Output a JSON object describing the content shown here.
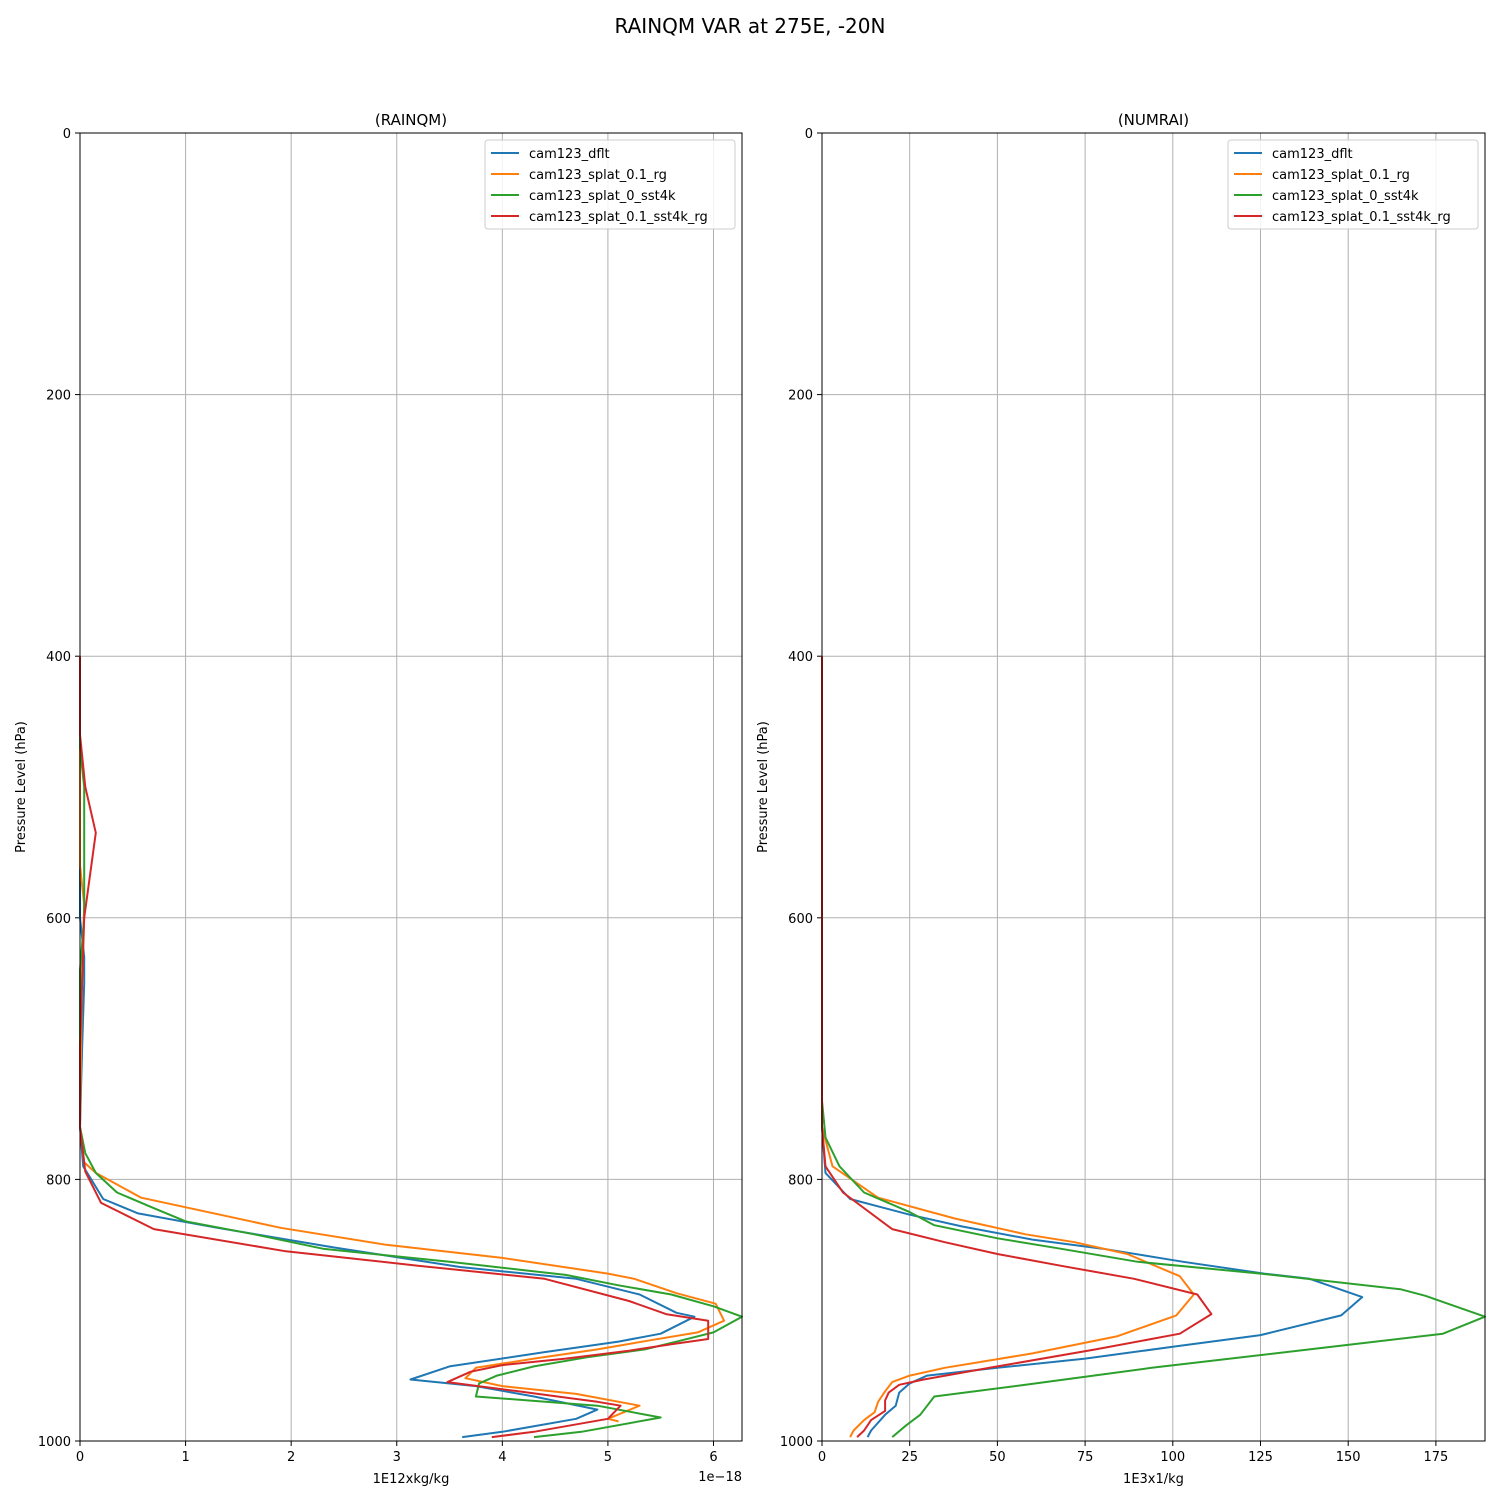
{
  "figure": {
    "title": "RAINQM VAR at 275E, -20N"
  },
  "colors": {
    "cam123_dflt": "#1f77b4",
    "cam123_splat_0.1_rg": "#ff7f0e",
    "cam123_splat_0_sst4k": "#2ca02c",
    "cam123_splat_0.1_sst4k_rg": "#d62728",
    "grid": "#b0b0b0"
  },
  "chart_data": [
    {
      "type": "line",
      "title": "(RAINQM)",
      "xlabel": "1E12xkg/kg",
      "ylabel": "Pressure Level (hPa)",
      "x_offset_label": "1e−18",
      "xlim": [
        0,
        6.27
      ],
      "ylim": [
        1000,
        0
      ],
      "y_inverted": true,
      "xticks": [
        "0",
        "1",
        "2",
        "3",
        "4",
        "5",
        "6"
      ],
      "yticks": [
        "0",
        "200",
        "400",
        "600",
        "800",
        "1000"
      ],
      "grid": true,
      "legend_position": "top-right",
      "series": [
        {
          "name": "cam123_dflt",
          "color": "#1f77b4",
          "points": [
            [
              0,
              400
            ],
            [
              0,
              600
            ],
            [
              0.04,
              630
            ],
            [
              0.04,
              650
            ],
            [
              0.02,
              700
            ],
            [
              0,
              760
            ],
            [
              0.03,
              790
            ],
            [
              0.22,
              815
            ],
            [
              0.55,
              826
            ],
            [
              1.3,
              837
            ],
            [
              2.4,
              852
            ],
            [
              3.6,
              867
            ],
            [
              4.7,
              876
            ],
            [
              5.3,
              888
            ],
            [
              5.65,
              902
            ],
            [
              5.82,
              905
            ],
            [
              5.5,
              918
            ],
            [
              5.1,
              924
            ],
            [
              4.4,
              932
            ],
            [
              3.5,
              943
            ],
            [
              3.13,
              953
            ],
            [
              3.75,
              958
            ],
            [
              4.3,
              966
            ],
            [
              4.9,
              976
            ],
            [
              4.7,
              983
            ],
            [
              4.0,
              993
            ],
            [
              3.62,
              997
            ]
          ]
        },
        {
          "name": "cam123_splat_0.1_rg",
          "color": "#ff7f0e",
          "points": [
            [
              0,
              400
            ],
            [
              0,
              560
            ],
            [
              0.04,
              590
            ],
            [
              0.02,
              640
            ],
            [
              0,
              760
            ],
            [
              0.04,
              787
            ],
            [
              0.15,
              795
            ],
            [
              0.58,
              814
            ],
            [
              1.9,
              837
            ],
            [
              2.9,
              850
            ],
            [
              4.0,
              860
            ],
            [
              5.0,
              872
            ],
            [
              5.25,
              876
            ],
            [
              5.65,
              887
            ],
            [
              6.02,
              895
            ],
            [
              6.1,
              908
            ],
            [
              5.85,
              917
            ],
            [
              5.4,
              923
            ],
            [
              4.9,
              930
            ],
            [
              4.3,
              937
            ],
            [
              3.75,
              944
            ],
            [
              3.65,
              952
            ],
            [
              4.0,
              958
            ],
            [
              4.7,
              964
            ],
            [
              5.3,
              973
            ],
            [
              5.0,
              983
            ],
            [
              5.1,
              985
            ]
          ]
        },
        {
          "name": "cam123_splat_0_sst4k",
          "color": "#2ca02c",
          "points": [
            [
              0,
              400
            ],
            [
              0,
              470
            ],
            [
              0.04,
              500
            ],
            [
              0.04,
              600
            ],
            [
              0,
              640
            ],
            [
              0,
              760
            ],
            [
              0.05,
              780
            ],
            [
              0.15,
              795
            ],
            [
              0.35,
              810
            ],
            [
              0.7,
              822
            ],
            [
              1.0,
              832
            ],
            [
              1.65,
              842
            ],
            [
              2.3,
              853
            ],
            [
              3.5,
              863
            ],
            [
              4.6,
              873
            ],
            [
              5.1,
              881
            ],
            [
              5.6,
              888
            ],
            [
              6.0,
              897
            ],
            [
              6.27,
              905
            ],
            [
              6.0,
              917
            ],
            [
              5.7,
              923
            ],
            [
              5.35,
              930
            ],
            [
              4.8,
              936
            ],
            [
              4.3,
              943
            ],
            [
              3.95,
              950
            ],
            [
              3.78,
              956
            ],
            [
              3.75,
              966
            ],
            [
              4.9,
              973
            ],
            [
              5.5,
              982
            ],
            [
              4.75,
              993
            ],
            [
              4.3,
              997
            ]
          ]
        },
        {
          "name": "cam123_splat_0.1_sst4k_rg",
          "color": "#d62728",
          "points": [
            [
              0,
              400
            ],
            [
              0,
              460
            ],
            [
              0.05,
              500
            ],
            [
              0.15,
              535
            ],
            [
              0.04,
              600
            ],
            [
              0.02,
              650
            ],
            [
              0,
              700
            ],
            [
              0,
              760
            ],
            [
              0.05,
              794
            ],
            [
              0.2,
              818
            ],
            [
              0.7,
              838
            ],
            [
              1.95,
              855
            ],
            [
              3.2,
              866
            ],
            [
              4.4,
              876
            ],
            [
              5.2,
              893
            ],
            [
              5.55,
              903
            ],
            [
              5.95,
              908
            ],
            [
              5.95,
              922
            ],
            [
              5.6,
              926
            ],
            [
              5.2,
              931
            ],
            [
              4.6,
              937
            ],
            [
              4.0,
              942
            ],
            [
              3.7,
              947
            ],
            [
              3.48,
              955
            ],
            [
              4.15,
              962
            ],
            [
              4.9,
              970
            ],
            [
              5.12,
              973
            ],
            [
              5.0,
              983
            ],
            [
              4.3,
              993
            ],
            [
              3.9,
              997
            ]
          ]
        }
      ]
    },
    {
      "type": "line",
      "title": "(NUMRAI)",
      "xlabel": "1E3x1/kg",
      "ylabel": "Pressure Level (hPa)",
      "xlim": [
        0,
        189
      ],
      "ylim": [
        1000,
        0
      ],
      "y_inverted": true,
      "xticks": [
        "0",
        "25",
        "50",
        "75",
        "100",
        "125",
        "150",
        "175"
      ],
      "yticks": [
        "0",
        "200",
        "400",
        "600",
        "800",
        "1000"
      ],
      "grid": true,
      "legend_position": "top-right",
      "series": [
        {
          "name": "cam123_dflt",
          "color": "#1f77b4",
          "points": [
            [
              0,
              400
            ],
            [
              0,
              760
            ],
            [
              1,
              795
            ],
            [
              8,
              815
            ],
            [
              25,
              827
            ],
            [
              40,
              836
            ],
            [
              60,
              846
            ],
            [
              80,
              853
            ],
            [
              103,
              863
            ],
            [
              126,
              872
            ],
            [
              139,
              876
            ],
            [
              154,
              890
            ],
            [
              148,
              904
            ],
            [
              125,
              919
            ],
            [
              100,
              928
            ],
            [
              75,
              937
            ],
            [
              50,
              944
            ],
            [
              30,
              950
            ],
            [
              25,
              956
            ],
            [
              22,
              963
            ],
            [
              21,
              973
            ],
            [
              18,
              980
            ],
            [
              14,
              992
            ],
            [
              13,
              997
            ]
          ]
        },
        {
          "name": "cam123_splat_0.1_rg",
          "color": "#ff7f0e",
          "points": [
            [
              0,
              400
            ],
            [
              0,
              760
            ],
            [
              3,
              790
            ],
            [
              16,
              814
            ],
            [
              38,
              830
            ],
            [
              58,
              842
            ],
            [
              72,
              848
            ],
            [
              87,
              857
            ],
            [
              102,
              874
            ],
            [
              106,
              888
            ],
            [
              101,
              904
            ],
            [
              84,
              920
            ],
            [
              60,
              933
            ],
            [
              35,
              944
            ],
            [
              25,
              950
            ],
            [
              20,
              955
            ],
            [
              18,
              962
            ],
            [
              16,
              970
            ],
            [
              15,
              978
            ],
            [
              12,
              984
            ],
            [
              9,
              992
            ],
            [
              8,
              997
            ]
          ]
        },
        {
          "name": "cam123_splat_0_sst4k",
          "color": "#2ca02c",
          "points": [
            [
              0,
              400
            ],
            [
              0,
              740
            ],
            [
              1,
              768
            ],
            [
              5,
              790
            ],
            [
              12,
              810
            ],
            [
              25,
              825
            ],
            [
              32,
              835
            ],
            [
              50,
              845
            ],
            [
              68,
              853
            ],
            [
              90,
              863
            ],
            [
              125,
              872
            ],
            [
              165,
              884
            ],
            [
              172,
              889
            ],
            [
              189,
              905
            ],
            [
              177,
              918
            ],
            [
              142,
              929
            ],
            [
              94,
              944
            ],
            [
              58,
              957
            ],
            [
              32,
              966
            ],
            [
              30,
              973
            ],
            [
              28,
              980
            ],
            [
              24,
              988
            ],
            [
              20,
              997
            ]
          ]
        },
        {
          "name": "cam123_splat_0.1_sst4k_rg",
          "color": "#d62728",
          "points": [
            [
              0,
              400
            ],
            [
              0,
              760
            ],
            [
              1,
              790
            ],
            [
              6,
              810
            ],
            [
              20,
              838
            ],
            [
              35,
              848
            ],
            [
              50,
              857
            ],
            [
              68,
              866
            ],
            [
              89,
              876
            ],
            [
              107,
              888
            ],
            [
              111,
              903
            ],
            [
              102,
              918
            ],
            [
              78,
              930
            ],
            [
              50,
              943
            ],
            [
              29,
              953
            ],
            [
              22,
              957
            ],
            [
              19,
              963
            ],
            [
              18,
              969
            ],
            [
              18,
              977
            ],
            [
              14,
              984
            ],
            [
              12,
              992
            ],
            [
              10,
              997
            ]
          ]
        }
      ]
    }
  ]
}
